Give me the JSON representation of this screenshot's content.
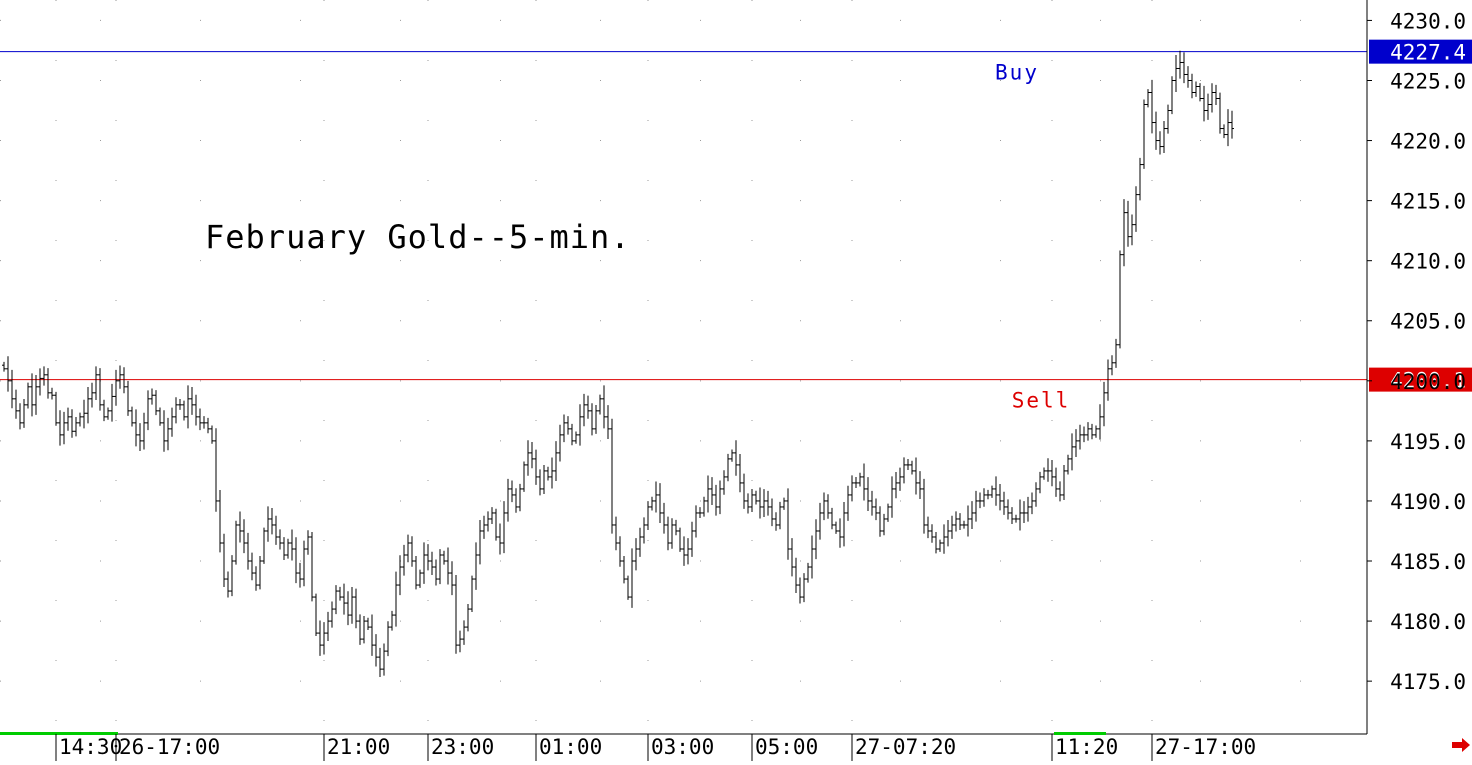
{
  "chart_data": {
    "type": "ohlc",
    "title": "February Gold--5-min.",
    "y_ticks": [
      "4175.0",
      "4180.0",
      "4185.0",
      "4190.0",
      "4195.0",
      "4200.0",
      "4205.0",
      "4210.0",
      "4215.0",
      "4220.0",
      "4225.0",
      "4230.0"
    ],
    "y_tick_values": [
      4175,
      4180,
      4185,
      4190,
      4195,
      4200,
      4205,
      4210,
      4215,
      4220,
      4225,
      4230
    ],
    "ylim": [
      4170.6,
      4231.7
    ],
    "x_ticks": [
      "14:30",
      "26-17:00",
      "21:00",
      "23:00",
      "01:00",
      "03:00",
      "05:00",
      "27-07:20",
      "11:20",
      "27-17:00"
    ],
    "x_tick_bar_index": [
      13,
      28,
      80,
      106,
      133,
      161,
      187,
      212,
      262,
      287
    ],
    "grid": "dotted",
    "horizontal_lines": [
      {
        "label": "Buy",
        "price_label": "4227.4",
        "price": 4227.4,
        "color": "#0000cc"
      },
      {
        "label": "Sell",
        "price_label": "4200.1",
        "price": 4200.1,
        "color": "#dd0000"
      }
    ],
    "closes": [
      4201.0,
      4200.0,
      4198.5,
      4197.5,
      4196.5,
      4198.0,
      4199.5,
      4198.0,
      4199.5,
      4200.2,
      4200.5,
      4199.0,
      4198.8,
      4196.5,
      4195.5,
      4196.5,
      4197.0,
      4195.8,
      4196.5,
      4197.0,
      4197.3,
      4198.5,
      4199.0,
      4200.5,
      4198.0,
      4197.0,
      4197.5,
      4198.7,
      4200.0,
      4200.5,
      4199.5,
      4197.5,
      4196.5,
      4195.5,
      4195.0,
      4196.5,
      4198.5,
      4198.8,
      4197.5,
      4196.5,
      4195.0,
      4196.0,
      4197.0,
      4198.0,
      4198.0,
      4197.0,
      4198.5,
      4198.0,
      4197.0,
      4196.5,
      4196.5,
      4196.0,
      4195.0,
      4190.0,
      4186.5,
      4183.5,
      4182.5,
      4185.0,
      4188.0,
      4187.5,
      4186.5,
      4185.0,
      4184.0,
      4183.0,
      4185.0,
      4187.5,
      4188.5,
      4188.0,
      4187.0,
      4186.5,
      4185.5,
      4186.5,
      4186.0,
      4184.0,
      4183.5,
      4186.0,
      4187.0,
      4182.0,
      4179.0,
      4178.0,
      4179.0,
      4180.0,
      4181.0,
      4182.5,
      4182.0,
      4181.5,
      4180.5,
      4182.0,
      4180.0,
      4178.5,
      4180.0,
      4179.5,
      4178.0,
      4177.0,
      4176.0,
      4177.5,
      4179.5,
      4180.5,
      4183.0,
      4184.5,
      4185.5,
      4186.5,
      4185.0,
      4183.0,
      4184.0,
      4185.5,
      4185.0,
      4184.5,
      4183.5,
      4185.5,
      4185.0,
      4184.0,
      4183.0,
      4178.0,
      4178.5,
      4179.5,
      4181.0,
      4183.5,
      4185.5,
      4187.5,
      4188.0,
      4188.5,
      4189.0,
      4187.0,
      4186.5,
      4189.0,
      4191.0,
      4190.5,
      4189.5,
      4191.0,
      4193.0,
      4194.0,
      4193.5,
      4192.0,
      4191.0,
      4192.5,
      4192.0,
      4192.5,
      4194.0,
      4195.5,
      4196.5,
      4196.0,
      4195.0,
      4195.5,
      4197.0,
      4198.0,
      4197.5,
      4196.0,
      4197.5,
      4198.5,
      4197.0,
      4196.0,
      4188.0,
      4186.5,
      4185.0,
      4183.5,
      4182.0,
      4185.0,
      4186.0,
      4187.0,
      4188.0,
      4189.5,
      4190.0,
      4190.5,
      4189.0,
      4188.0,
      4186.5,
      4188.0,
      4187.5,
      4186.0,
      4185.5,
      4186.0,
      4187.5,
      4189.0,
      4189.0,
      4190.0,
      4191.0,
      4190.5,
      4189.5,
      4191.0,
      4192.0,
      4193.5,
      4194.0,
      4193.0,
      4191.5,
      4190.0,
      4189.5,
      4190.5,
      4190.0,
      4189.5,
      4190.0,
      4189.5,
      4188.5,
      4188.0,
      4189.5,
      4190.0,
      4186.0,
      4184.5,
      4183.0,
      4182.0,
      4183.5,
      4184.5,
      4186.0,
      4187.5,
      4189.0,
      4190.0,
      4189.0,
      4188.0,
      4187.5,
      4187.0,
      4189.0,
      4190.5,
      4191.5,
      4191.5,
      4192.0,
      4191.0,
      4190.0,
      4189.5,
      4189.0,
      4187.5,
      4188.5,
      4189.5,
      4191.0,
      4191.5,
      4192.0,
      4193.0,
      4193.0,
      4192.5,
      4191.5,
      4191.0,
      4188.0,
      4187.5,
      4187.0,
      4186.0,
      4186.5,
      4187.0,
      4187.5,
      4188.0,
      4188.5,
      4188.0,
      4188.0,
      4188.5,
      4189.0,
      4190.0,
      4190.0,
      4190.5,
      4190.5,
      4191.0,
      4190.5,
      4190.0,
      4189.5,
      4189.0,
      4188.5,
      4188.5,
      4189.0,
      4189.0,
      4189.5,
      4190.0,
      4191.0,
      4192.0,
      4192.5,
      4192.5,
      4192.0,
      4191.0,
      4190.5,
      4192.5,
      4193.5,
      4194.5,
      4195.0,
      4195.5,
      4195.5,
      4196.0,
      4195.5,
      4196.0,
      4197.0,
      4199.0,
      4201.0,
      4201.5,
      4203.0,
      4210.5,
      4214.0,
      4212.0,
      4213.0,
      4215.5,
      4218.0,
      4223.0,
      4224.0,
      4221.5,
      4220.0,
      4219.5,
      4221.0,
      4222.5,
      4225.0,
      4226.0,
      4226.5,
      4225.5,
      4225.0,
      4224.0,
      4224.5,
      4223.5,
      4222.5,
      4223.0,
      4224.0,
      4223.5,
      4221.0,
      4220.5,
      4221.5,
      4221.0
    ]
  }
}
